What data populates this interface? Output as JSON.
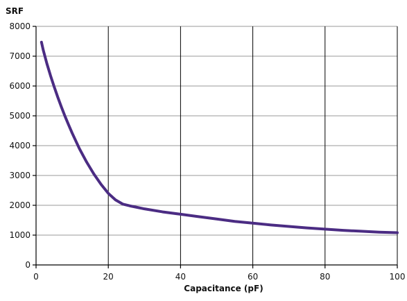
{
  "chart_data": {
    "type": "line",
    "title": "",
    "ylabel": "SRF",
    "xlabel": "Capacitance (pF)",
    "xlim": [
      0,
      100
    ],
    "ylim": [
      0,
      8000
    ],
    "x_ticks": [
      0,
      20,
      40,
      60,
      80,
      100
    ],
    "y_ticks": [
      0,
      1000,
      2000,
      3000,
      4000,
      5000,
      6000,
      7000,
      8000
    ],
    "grid": {
      "vertical": true,
      "horizontal": true,
      "vertical_color": "#000000",
      "horizontal_color": "#9a9a9a"
    },
    "series": [
      {
        "color": "#4b2c83",
        "x": [
          1.5,
          2,
          3,
          4,
          5,
          6,
          7,
          8,
          9,
          10,
          12,
          14,
          16,
          18,
          20,
          22,
          24,
          26,
          28,
          30,
          35,
          40,
          45,
          50,
          55,
          60,
          65,
          70,
          75,
          80,
          85,
          90,
          95,
          100
        ],
        "y": [
          7470,
          7200,
          6750,
          6350,
          5980,
          5630,
          5300,
          4990,
          4700,
          4420,
          3900,
          3450,
          3050,
          2700,
          2400,
          2180,
          2040,
          1980,
          1930,
          1880,
          1780,
          1700,
          1620,
          1540,
          1460,
          1400,
          1340,
          1290,
          1240,
          1200,
          1160,
          1130,
          1100,
          1080
        ]
      }
    ]
  }
}
